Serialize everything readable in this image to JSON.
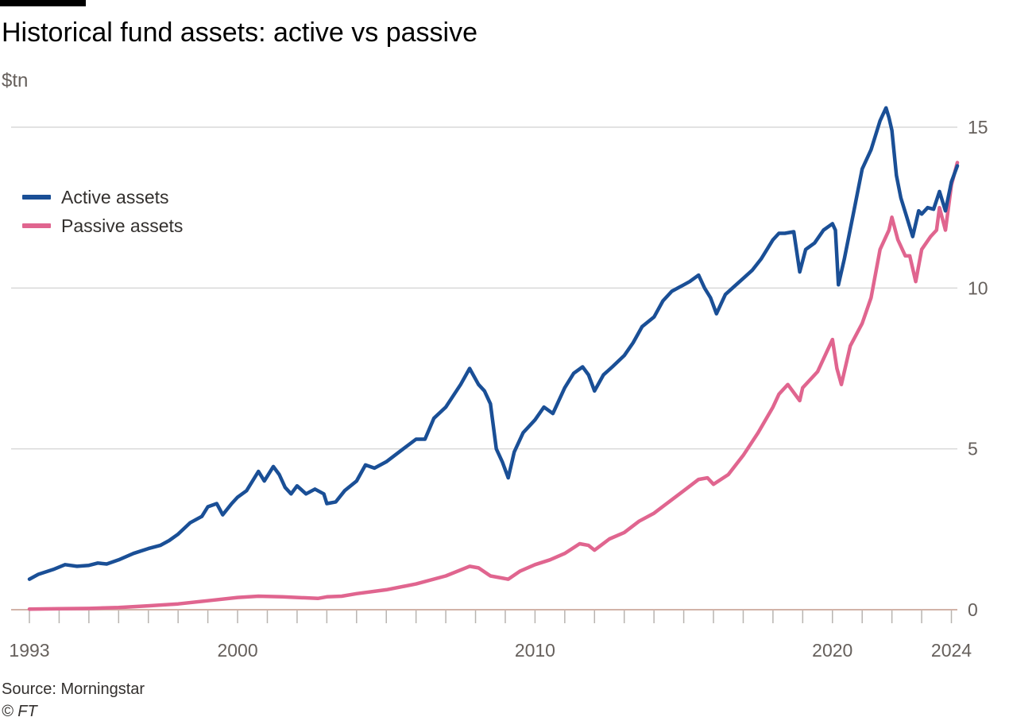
{
  "title": "Historical fund assets: active vs passive",
  "unit_label": "$tn",
  "source": "Source: Morningstar",
  "copyright": "© FT",
  "colors": {
    "active": "#1a4f96",
    "passive": "#e0658f",
    "grid": "#d9d9d9",
    "baseline": "#d2b3a8"
  },
  "chart_data": {
    "type": "line",
    "title": "Historical fund assets: active vs passive",
    "ylabel": "$tn",
    "xlabel": "",
    "xlim": [
      1993,
      2024.2
    ],
    "ylim": [
      0,
      15
    ],
    "y_ticks": [
      0,
      5,
      10,
      15
    ],
    "x_tick_labels": [
      {
        "year": 1993,
        "label": "1993"
      },
      {
        "year": 2000,
        "label": "2000"
      },
      {
        "year": 2010,
        "label": "2010"
      },
      {
        "year": 2020,
        "label": "2020"
      },
      {
        "year": 2024,
        "label": "2024"
      }
    ],
    "x_minor_ticks": [
      1993,
      1994,
      1995,
      1996,
      1997,
      1998,
      1999,
      2000,
      2001,
      2002,
      2003,
      2004,
      2005,
      2006,
      2007,
      2008,
      2009,
      2010,
      2011,
      2012,
      2013,
      2014,
      2015,
      2016,
      2017,
      2018,
      2019,
      2020,
      2021,
      2022,
      2023,
      2024
    ],
    "legend": {
      "position": "top-left"
    },
    "series": [
      {
        "name": "Active assets",
        "color_key": "active",
        "points": [
          [
            1993.0,
            0.95
          ],
          [
            1993.3,
            1.1
          ],
          [
            1993.8,
            1.25
          ],
          [
            1994.2,
            1.4
          ],
          [
            1994.6,
            1.35
          ],
          [
            1995.0,
            1.38
          ],
          [
            1995.3,
            1.45
          ],
          [
            1995.6,
            1.42
          ],
          [
            1996.0,
            1.55
          ],
          [
            1996.5,
            1.75
          ],
          [
            1997.0,
            1.9
          ],
          [
            1997.4,
            2.0
          ],
          [
            1997.7,
            2.15
          ],
          [
            1998.0,
            2.35
          ],
          [
            1998.4,
            2.7
          ],
          [
            1998.8,
            2.9
          ],
          [
            1999.0,
            3.2
          ],
          [
            1999.3,
            3.3
          ],
          [
            1999.5,
            2.95
          ],
          [
            1999.8,
            3.3
          ],
          [
            2000.0,
            3.5
          ],
          [
            2000.3,
            3.7
          ],
          [
            2000.7,
            4.3
          ],
          [
            2000.9,
            4.0
          ],
          [
            2001.2,
            4.45
          ],
          [
            2001.4,
            4.2
          ],
          [
            2001.6,
            3.8
          ],
          [
            2001.8,
            3.6
          ],
          [
            2002.0,
            3.85
          ],
          [
            2002.3,
            3.6
          ],
          [
            2002.6,
            3.75
          ],
          [
            2002.9,
            3.6
          ],
          [
            2003.0,
            3.3
          ],
          [
            2003.3,
            3.35
          ],
          [
            2003.6,
            3.7
          ],
          [
            2004.0,
            4.0
          ],
          [
            2004.3,
            4.5
          ],
          [
            2004.6,
            4.4
          ],
          [
            2005.0,
            4.6
          ],
          [
            2005.5,
            4.95
          ],
          [
            2006.0,
            5.3
          ],
          [
            2006.3,
            5.3
          ],
          [
            2006.6,
            5.95
          ],
          [
            2007.0,
            6.3
          ],
          [
            2007.5,
            7.0
          ],
          [
            2007.8,
            7.5
          ],
          [
            2008.1,
            7.0
          ],
          [
            2008.3,
            6.8
          ],
          [
            2008.5,
            6.4
          ],
          [
            2008.7,
            5.0
          ],
          [
            2008.9,
            4.6
          ],
          [
            2009.1,
            4.1
          ],
          [
            2009.3,
            4.9
          ],
          [
            2009.6,
            5.5
          ],
          [
            2010.0,
            5.9
          ],
          [
            2010.3,
            6.3
          ],
          [
            2010.6,
            6.1
          ],
          [
            2011.0,
            6.9
          ],
          [
            2011.3,
            7.35
          ],
          [
            2011.6,
            7.55
          ],
          [
            2011.8,
            7.3
          ],
          [
            2012.0,
            6.8
          ],
          [
            2012.3,
            7.3
          ],
          [
            2012.6,
            7.55
          ],
          [
            2013.0,
            7.9
          ],
          [
            2013.3,
            8.3
          ],
          [
            2013.6,
            8.8
          ],
          [
            2014.0,
            9.1
          ],
          [
            2014.3,
            9.6
          ],
          [
            2014.6,
            9.9
          ],
          [
            2015.0,
            10.1
          ],
          [
            2015.2,
            10.2
          ],
          [
            2015.5,
            10.4
          ],
          [
            2015.7,
            10.0
          ],
          [
            2015.9,
            9.7
          ],
          [
            2016.1,
            9.2
          ],
          [
            2016.4,
            9.8
          ],
          [
            2016.7,
            10.05
          ],
          [
            2017.0,
            10.3
          ],
          [
            2017.3,
            10.55
          ],
          [
            2017.6,
            10.9
          ],
          [
            2018.0,
            11.5
          ],
          [
            2018.2,
            11.7
          ],
          [
            2018.4,
            11.7
          ],
          [
            2018.7,
            11.75
          ],
          [
            2018.9,
            10.5
          ],
          [
            2019.1,
            11.2
          ],
          [
            2019.4,
            11.4
          ],
          [
            2019.7,
            11.8
          ],
          [
            2020.0,
            12.0
          ],
          [
            2020.1,
            11.8
          ],
          [
            2020.2,
            10.1
          ],
          [
            2020.4,
            10.9
          ],
          [
            2020.7,
            12.3
          ],
          [
            2021.0,
            13.7
          ],
          [
            2021.3,
            14.3
          ],
          [
            2021.6,
            15.2
          ],
          [
            2021.8,
            15.6
          ],
          [
            2021.9,
            15.3
          ],
          [
            2022.0,
            14.9
          ],
          [
            2022.15,
            13.5
          ],
          [
            2022.3,
            12.8
          ],
          [
            2022.5,
            12.2
          ],
          [
            2022.7,
            11.6
          ],
          [
            2022.9,
            12.4
          ],
          [
            2023.0,
            12.3
          ],
          [
            2023.2,
            12.5
          ],
          [
            2023.4,
            12.45
          ],
          [
            2023.6,
            13.0
          ],
          [
            2023.8,
            12.4
          ],
          [
            2024.0,
            13.3
          ],
          [
            2024.2,
            13.8
          ]
        ]
      },
      {
        "name": "Passive assets",
        "color_key": "passive",
        "points": [
          [
            1993.0,
            0.02
          ],
          [
            1994.0,
            0.03
          ],
          [
            1995.0,
            0.04
          ],
          [
            1996.0,
            0.07
          ],
          [
            1997.0,
            0.12
          ],
          [
            1998.0,
            0.18
          ],
          [
            1999.0,
            0.28
          ],
          [
            2000.0,
            0.38
          ],
          [
            2000.7,
            0.42
          ],
          [
            2001.5,
            0.4
          ],
          [
            2002.0,
            0.38
          ],
          [
            2002.7,
            0.35
          ],
          [
            2003.0,
            0.4
          ],
          [
            2003.5,
            0.42
          ],
          [
            2004.0,
            0.5
          ],
          [
            2005.0,
            0.62
          ],
          [
            2006.0,
            0.8
          ],
          [
            2007.0,
            1.05
          ],
          [
            2007.8,
            1.35
          ],
          [
            2008.1,
            1.3
          ],
          [
            2008.5,
            1.05
          ],
          [
            2009.1,
            0.95
          ],
          [
            2009.5,
            1.2
          ],
          [
            2010.0,
            1.4
          ],
          [
            2010.5,
            1.55
          ],
          [
            2011.0,
            1.75
          ],
          [
            2011.5,
            2.05
          ],
          [
            2011.8,
            2.0
          ],
          [
            2012.0,
            1.85
          ],
          [
            2012.5,
            2.2
          ],
          [
            2013.0,
            2.4
          ],
          [
            2013.5,
            2.75
          ],
          [
            2014.0,
            3.0
          ],
          [
            2014.5,
            3.35
          ],
          [
            2015.0,
            3.7
          ],
          [
            2015.5,
            4.05
          ],
          [
            2015.8,
            4.1
          ],
          [
            2016.0,
            3.9
          ],
          [
            2016.5,
            4.2
          ],
          [
            2017.0,
            4.8
          ],
          [
            2017.5,
            5.5
          ],
          [
            2018.0,
            6.3
          ],
          [
            2018.2,
            6.7
          ],
          [
            2018.5,
            7.0
          ],
          [
            2018.9,
            6.5
          ],
          [
            2019.0,
            6.9
          ],
          [
            2019.5,
            7.4
          ],
          [
            2020.0,
            8.4
          ],
          [
            2020.15,
            7.5
          ],
          [
            2020.3,
            7.0
          ],
          [
            2020.6,
            8.2
          ],
          [
            2021.0,
            8.9
          ],
          [
            2021.3,
            9.7
          ],
          [
            2021.6,
            11.2
          ],
          [
            2021.9,
            11.8
          ],
          [
            2022.0,
            12.2
          ],
          [
            2022.2,
            11.5
          ],
          [
            2022.45,
            11.0
          ],
          [
            2022.6,
            11.0
          ],
          [
            2022.8,
            10.2
          ],
          [
            2023.0,
            11.2
          ],
          [
            2023.3,
            11.6
          ],
          [
            2023.5,
            11.8
          ],
          [
            2023.6,
            12.5
          ],
          [
            2023.8,
            11.8
          ],
          [
            2024.0,
            13.2
          ],
          [
            2024.2,
            13.9
          ]
        ]
      }
    ]
  }
}
